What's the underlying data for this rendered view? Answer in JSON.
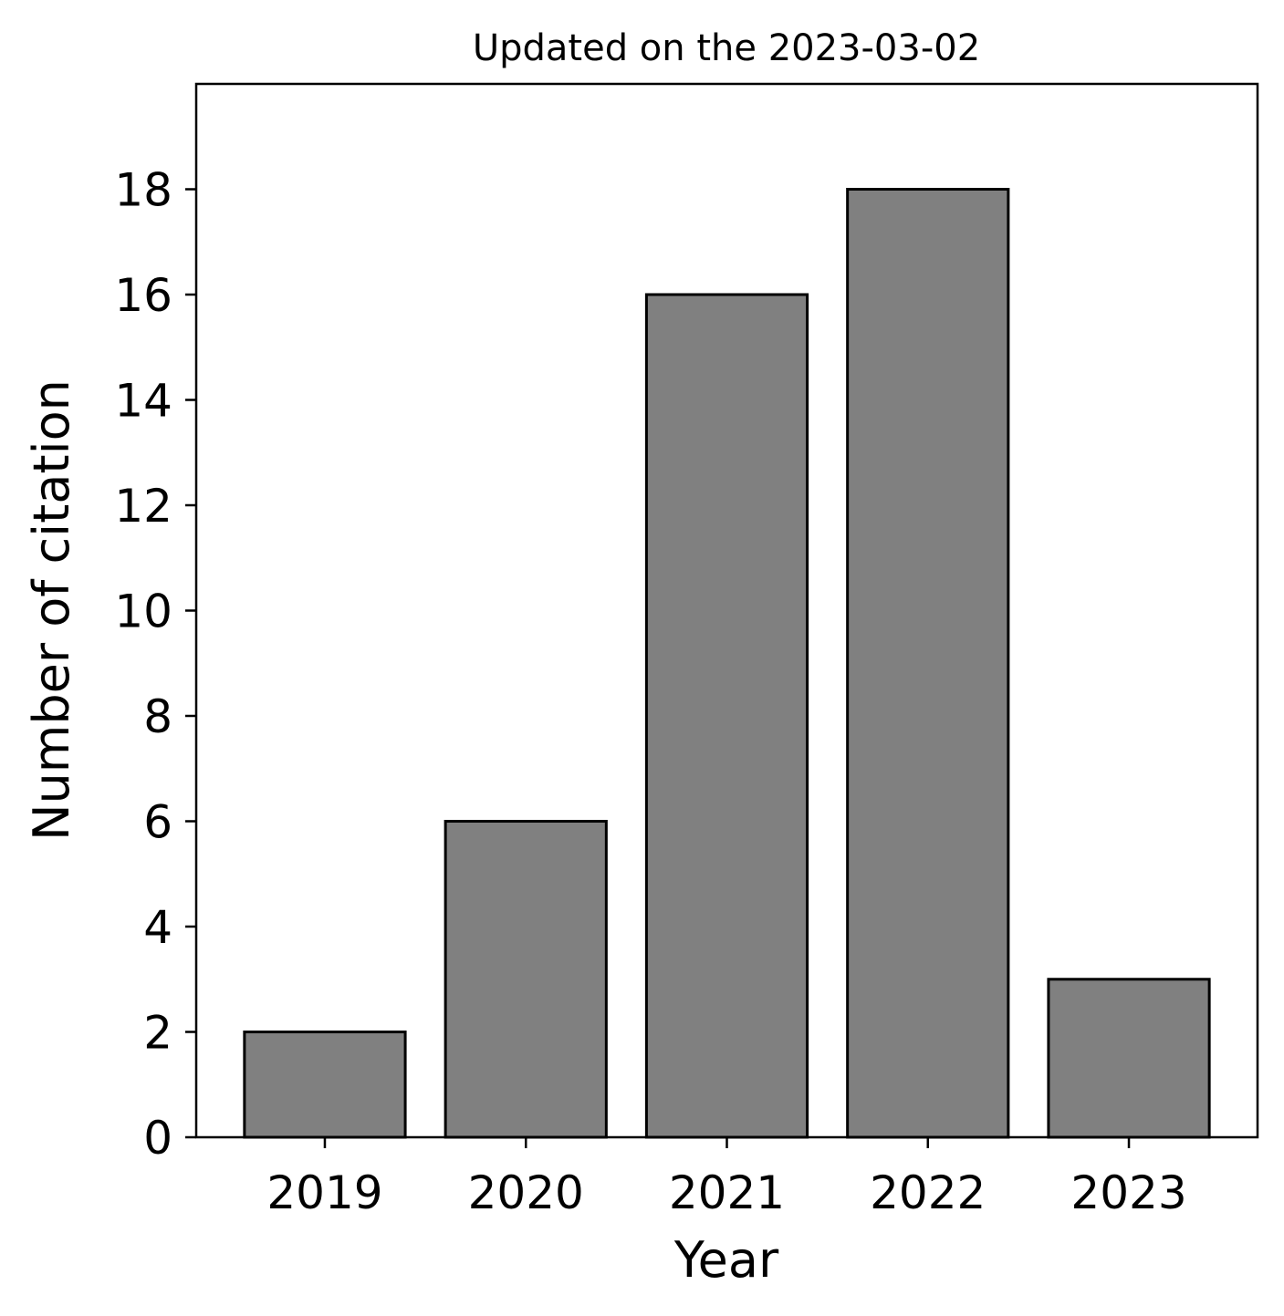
{
  "chart_data": {
    "type": "bar",
    "title": "Updated on the 2023-03-02",
    "xlabel": "Year",
    "ylabel": "Number of citation",
    "categories": [
      "2019",
      "2020",
      "2021",
      "2022",
      "2023"
    ],
    "values": [
      2,
      6,
      16,
      18,
      3
    ],
    "ylim": [
      0,
      20
    ],
    "yticks": [
      0,
      2,
      4,
      6,
      8,
      10,
      12,
      14,
      16,
      18
    ],
    "bar_color": "#808080",
    "bar_edge_color": "#000000",
    "grid": false,
    "legend": "none"
  }
}
